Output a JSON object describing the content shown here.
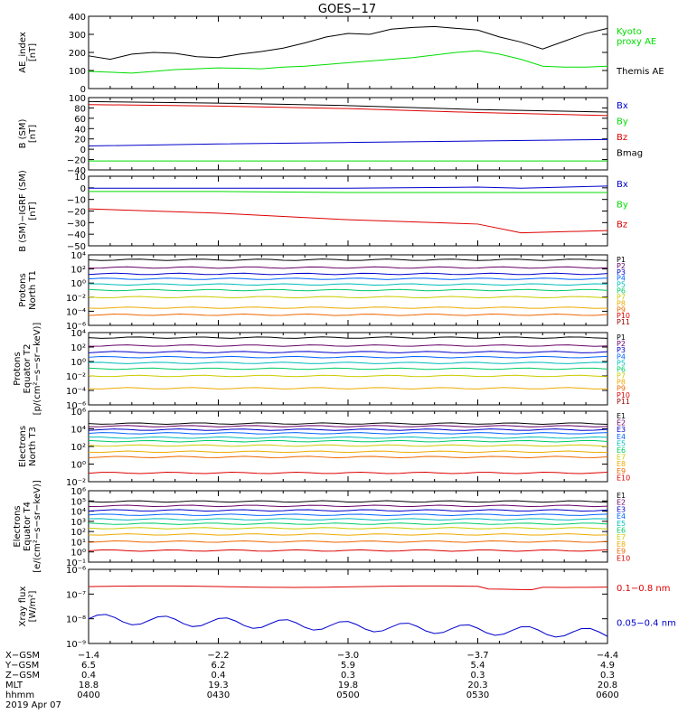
{
  "title": "GOES−17",
  "colors": {
    "black": "#000000",
    "green": "#00dd00",
    "red": "#dd0000",
    "blue": "#0000cc",
    "P": [
      "#000000",
      "#660066",
      "#0000cc",
      "#0066ff",
      "#00bbbb",
      "#00cc66",
      "#cccc00",
      "#eeaa00",
      "#ee6600",
      "#dd0000",
      "#990000"
    ],
    "E": [
      "#000000",
      "#660066",
      "#0000cc",
      "#0066ff",
      "#00bbbb",
      "#00cc66",
      "#cccc00",
      "#eeaa00",
      "#ee6600",
      "#dd0000",
      "#990000"
    ]
  },
  "chart_data": [
    {
      "id": "ae",
      "type": "line",
      "ylabel": "AE_index\n[nT]",
      "ylim": [
        0,
        420
      ],
      "yticks": [
        "0",
        "100",
        "200",
        "300",
        "400"
      ],
      "x": [
        0,
        5,
        10,
        15,
        20,
        25,
        30,
        35,
        40,
        45,
        50,
        55,
        60,
        65,
        70,
        75,
        80,
        85,
        90,
        95,
        100,
        105,
        110,
        115,
        120
      ],
      "series": [
        {
          "name": "Kyoto\nproxy AE",
          "color": "green",
          "values": [
            100,
            95,
            90,
            100,
            110,
            115,
            120,
            118,
            115,
            125,
            130,
            140,
            150,
            160,
            170,
            180,
            195,
            210,
            220,
            200,
            170,
            130,
            125,
            125,
            130
          ]
        },
        {
          "name": "Themis AE",
          "color": "black",
          "values": [
            190,
            170,
            200,
            210,
            205,
            185,
            180,
            200,
            215,
            235,
            265,
            300,
            320,
            315,
            345,
            355,
            360,
            350,
            340,
            300,
            270,
            230,
            275,
            320,
            350
          ]
        }
      ],
      "legend": "right"
    },
    {
      "id": "bsm",
      "type": "line",
      "ylabel": "B (SM)\n[nT]",
      "ylim": [
        -45,
        100
      ],
      "yticks": [
        "100",
        "80",
        "60",
        "40",
        "20",
        "0",
        "−20",
        "−40"
      ],
      "x": [
        0,
        30,
        60,
        90,
        120
      ],
      "series": [
        {
          "name": "Bx",
          "color": "blue",
          "values": [
            3,
            7,
            10,
            13,
            16
          ]
        },
        {
          "name": "By",
          "color": "green",
          "values": [
            -27,
            -27,
            -27,
            -27,
            -27
          ]
        },
        {
          "name": "Bz",
          "color": "red",
          "values": [
            86,
            83,
            78,
            70,
            64
          ]
        },
        {
          "name": "Bmag",
          "color": "black",
          "values": [
            92,
            89,
            84,
            76,
            71
          ]
        }
      ],
      "legend": "right"
    },
    {
      "id": "bigrf",
      "type": "line",
      "ylabel": "B (SM)−IGRF (SM)\n[nT]",
      "ylim": [
        -52,
        12
      ],
      "yticks": [
        "10",
        "0",
        "−10",
        "−20",
        "−30",
        "−40",
        "−50"
      ],
      "x": [
        0,
        30,
        60,
        90,
        100,
        120
      ],
      "series": [
        {
          "name": "Bx",
          "color": "blue",
          "values": [
            1,
            1,
            1,
            2,
            1,
            3
          ]
        },
        {
          "name": "By",
          "color": "green",
          "values": [
            -2,
            -2,
            -3,
            -3,
            -3,
            -3
          ]
        },
        {
          "name": "Bz",
          "color": "red",
          "values": [
            -18,
            -22,
            -28,
            -32,
            -40,
            -38
          ]
        }
      ],
      "legend": "right"
    },
    {
      "id": "protonsT1",
      "type": "line",
      "scale": "log",
      "ylabel": "Protons\nNorth T1",
      "ylim": [
        -6,
        4
      ],
      "yticks": [
        "10⁴",
        "10²",
        "10⁰",
        "10⁻²",
        "10⁻⁴",
        "10⁻⁶"
      ],
      "series_labels": [
        "P1",
        "P2",
        "P3",
        "P4",
        "P5",
        "P6",
        "P7",
        "P8",
        "P9",
        "P10",
        "P11"
      ],
      "levels_log10": [
        3.3,
        2.2,
        1.3,
        0.6,
        -0.2,
        -1.0,
        -2.0,
        -3.5,
        -4.5
      ]
    },
    {
      "id": "protonsT2",
      "type": "line",
      "scale": "log",
      "ylabel": "Protons\nEquator T2\n[p/(cm²−s−sr−keV)]",
      "ylim": [
        -6,
        4
      ],
      "yticks": [
        "10⁴",
        "10²",
        "10⁰",
        "10⁻²",
        "10⁻⁴",
        "10⁻⁶"
      ],
      "series_labels": [
        "P1",
        "P2",
        "P3",
        "P4",
        "P5",
        "P6",
        "P7",
        "P8",
        "P9",
        "P10",
        "P11"
      ],
      "levels_log10": [
        3.3,
        2.2,
        1.3,
        0.6,
        -0.2,
        -1.0,
        -2.0,
        -3.7
      ]
    },
    {
      "id": "electronsT3",
      "type": "line",
      "scale": "log",
      "ylabel": "Electrons\nNorth T3",
      "ylim": [
        -2,
        6
      ],
      "yticks": [
        "10⁶",
        "10⁴",
        "10²",
        "10⁰",
        "10⁻²"
      ],
      "series_labels": [
        "E1",
        "E2",
        "E3",
        "E4",
        "E5",
        "E6",
        "E7",
        "E8",
        "E9",
        "E10"
      ],
      "levels_log10": [
        4.6,
        4.3,
        3.9,
        3.5,
        3.0,
        2.6,
        2.1,
        1.4,
        0.8,
        -1.0
      ]
    },
    {
      "id": "electronsT4",
      "type": "line",
      "scale": "log",
      "ylabel": "Electrons\nEquator T4\n[e/(cm²−s−sr−keV)]",
      "ylim": [
        -2,
        6
      ],
      "yticks": [
        "10⁶",
        "10⁵",
        "10⁴",
        "10³",
        "10²",
        "10¹",
        "10⁰",
        "10⁻¹"
      ],
      "series_labels": [
        "E1",
        "E2",
        "E3",
        "E4",
        "E5",
        "E6",
        "E7",
        "E8",
        "E9",
        "E10"
      ],
      "levels_log10": [
        4.8,
        4.3,
        3.8,
        3.3,
        2.8,
        2.3,
        1.8,
        1.1,
        0.3,
        -0.7
      ]
    },
    {
      "id": "xray",
      "type": "line",
      "scale": "log",
      "ylabel": "Xray flux\n[W/m²]",
      "ylim": [
        -9,
        -6
      ],
      "yticks": [
        "10⁻⁶",
        "10⁻⁷",
        "10⁻⁸",
        "10⁻⁹"
      ],
      "series": [
        {
          "name": "0.1−0.8 nm",
          "color": "red"
        },
        {
          "name": "0.05−0.4 nm",
          "color": "blue"
        }
      ]
    }
  ],
  "x_axis": {
    "row_labels": [
      "X−GSM",
      "Y−GSM",
      "Z−GSM",
      "MLT",
      "hhmm",
      "2019 Apr 07"
    ],
    "columns": [
      [
        "−1.4",
        "6.5",
        "0.4",
        "18.8",
        "0400"
      ],
      [
        "−2.2",
        "6.2",
        "0.4",
        "19.3",
        "0430"
      ],
      [
        "−3.0",
        "5.9",
        "0.3",
        "19.8",
        "0500"
      ],
      [
        "−3.7",
        "5.4",
        "0.3",
        "20.3",
        "0530"
      ],
      [
        "−4.4",
        "4.9",
        "0.3",
        "20.8",
        "0600"
      ]
    ]
  }
}
